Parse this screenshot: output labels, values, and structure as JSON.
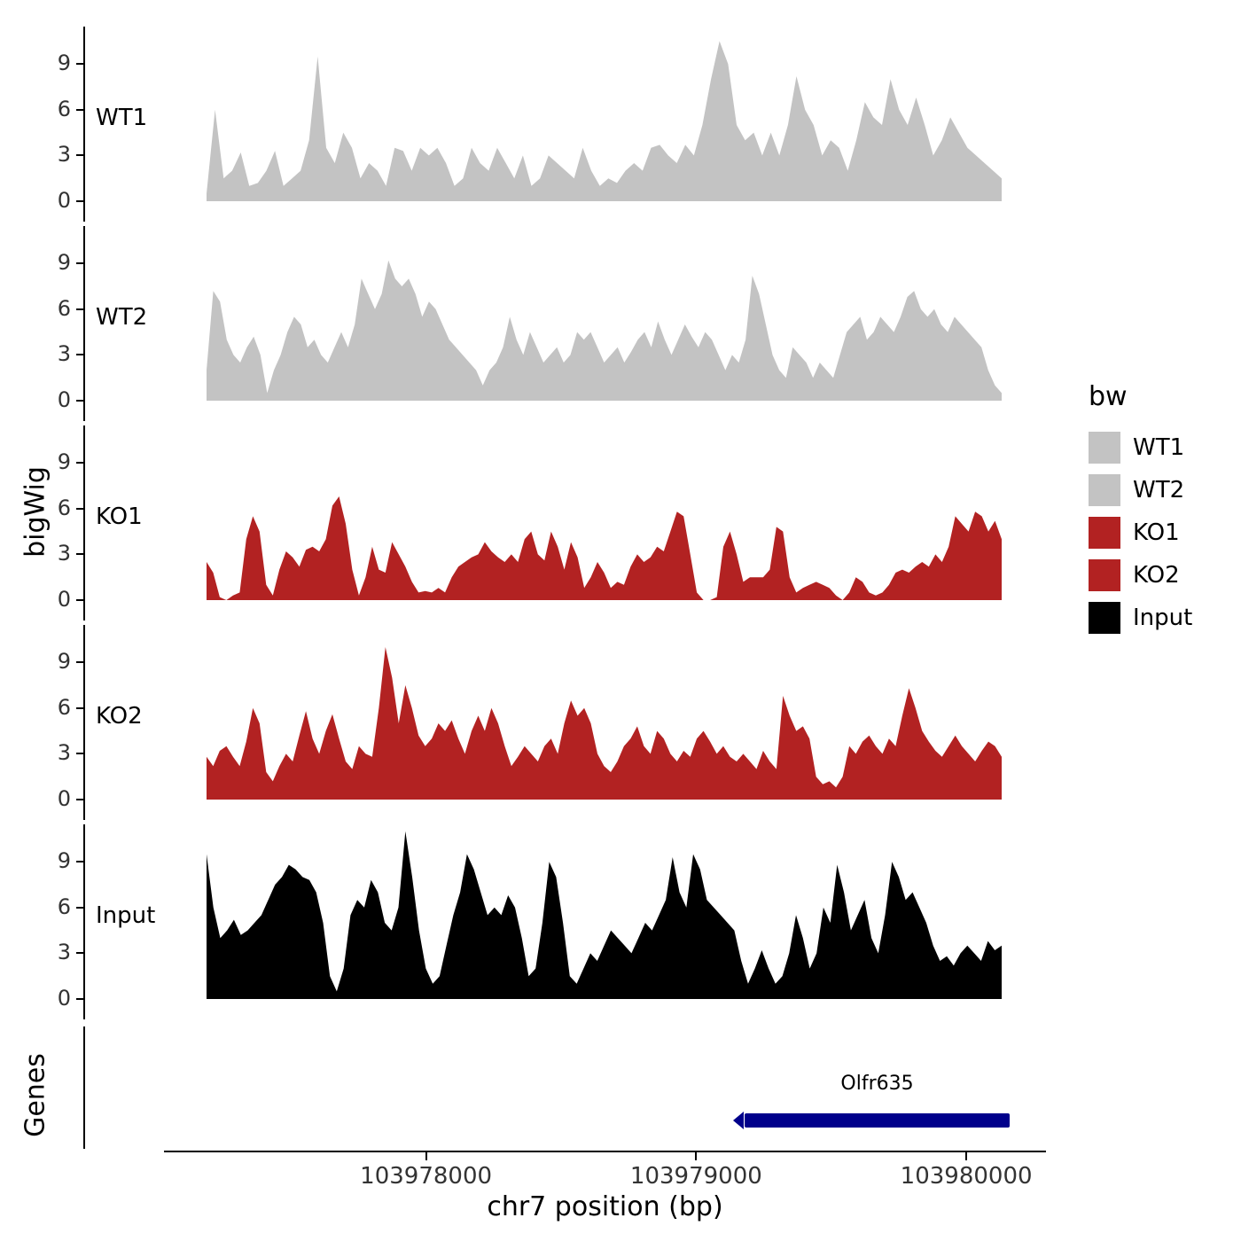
{
  "figure": {
    "ylab": "bigWig",
    "genes_lab": "Genes",
    "xlab": "chr7 position (bp)"
  },
  "legend": {
    "title": "bw",
    "entries": [
      {
        "label": "WT1",
        "color": "#c3c3c3"
      },
      {
        "label": "WT2",
        "color": "#c3c3c3"
      },
      {
        "label": "KO1",
        "color": "#b22222"
      },
      {
        "label": "KO2",
        "color": "#b22222"
      },
      {
        "label": "Input",
        "color": "#000000"
      }
    ]
  },
  "x_axis": {
    "ticks": [
      "103978000",
      "103979000",
      "103980000"
    ],
    "tick_values": [
      103978000,
      103979000,
      103980000
    ],
    "range_bp": [
      103977030,
      103980295
    ]
  },
  "gene": {
    "name": "Olfr635",
    "start_bp": 103979180,
    "end_bp": 103980160,
    "strand": "-",
    "color": "#00008B"
  },
  "chart_data": {
    "type": "area",
    "title": "",
    "xlabel": "chr7 position (bp)",
    "ylabel": "bigWig",
    "y_ticks": [
      0,
      3,
      6,
      9
    ],
    "ylim": [
      0,
      11
    ],
    "x_range_bp": [
      103977190,
      103980130
    ],
    "legend_title": "bw",
    "series": [
      {
        "name": "WT1",
        "color": "#c3c3c3",
        "values": [
          0.5,
          6,
          1.5,
          2,
          3.2,
          1,
          1.2,
          2,
          3.3,
          1,
          1.5,
          2,
          4,
          9.5,
          3.5,
          2.5,
          4.5,
          3.5,
          1.5,
          2.5,
          2,
          1,
          3.5,
          3.3,
          2,
          3.5,
          3,
          3.5,
          2.5,
          1,
          1.5,
          3.5,
          2.5,
          2,
          3.5,
          2.5,
          1.5,
          3,
          1,
          1.5,
          3,
          2.5,
          2,
          1.5,
          3.5,
          2,
          1,
          1.5,
          1.2,
          2,
          2.5,
          2,
          3.5,
          3.7,
          3,
          2.5,
          3.7,
          3,
          5,
          8,
          10.5,
          9,
          5,
          4,
          4.5,
          3,
          4.5,
          3,
          5,
          8.2,
          6,
          5,
          3,
          4,
          3.5,
          2,
          4,
          6.5,
          5.5,
          5,
          8,
          6,
          5,
          6.8,
          5,
          3,
          4,
          5.5,
          4.5,
          3.5,
          3,
          2.5,
          2,
          1.5
        ]
      },
      {
        "name": "WT2",
        "color": "#c3c3c3",
        "values": [
          2,
          7.2,
          6.5,
          4,
          3,
          2.5,
          3.5,
          4.2,
          3,
          0.5,
          2,
          3,
          4.5,
          5.5,
          5,
          3.5,
          4,
          3,
          2.5,
          3.5,
          4.5,
          3.5,
          5,
          8,
          7,
          6,
          7,
          9.2,
          8,
          7.5,
          8,
          7,
          5.5,
          6.5,
          6,
          5,
          4,
          3.5,
          3,
          2.5,
          2,
          1,
          2,
          2.5,
          3.5,
          5.5,
          4,
          3,
          4.5,
          3.5,
          2.5,
          3,
          3.5,
          2.5,
          3,
          4.5,
          4,
          4.5,
          3.5,
          2.5,
          3,
          3.5,
          2.5,
          3.2,
          4,
          4.5,
          3.5,
          5.2,
          4,
          3,
          4,
          5,
          4.2,
          3.5,
          4.5,
          4,
          3,
          2,
          3,
          2.5,
          4,
          8.2,
          7,
          5,
          3,
          2,
          1.5,
          3.5,
          3,
          2.5,
          1.5,
          2.5,
          2,
          1.5,
          3,
          4.5,
          5,
          5.5,
          4,
          4.5,
          5.5,
          5,
          4.5,
          5.5,
          6.8,
          7.2,
          6,
          5.5,
          6,
          5,
          4.5,
          5.5,
          5,
          4.5,
          4,
          3.5,
          2,
          1,
          0.5
        ]
      },
      {
        "name": "KO1",
        "color": "#b22222",
        "values": [
          2.5,
          1.8,
          0.2,
          0,
          0.3,
          0.5,
          4,
          5.5,
          4.5,
          1,
          0.3,
          2,
          3.2,
          2.8,
          2.2,
          3.3,
          3.5,
          3.2,
          4,
          6.2,
          6.8,
          5,
          2,
          0.3,
          1.5,
          3.5,
          2,
          1.8,
          3.8,
          3,
          2.2,
          1.2,
          0.5,
          0.6,
          0.5,
          0.8,
          0.5,
          1.5,
          2.2,
          2.5,
          2.8,
          3,
          3.8,
          3.2,
          2.8,
          2.5,
          3,
          2.5,
          4,
          4.5,
          3,
          2.6,
          4.5,
          3.5,
          2,
          3.8,
          2.8,
          0.8,
          1.5,
          2.5,
          1.8,
          0.8,
          1.2,
          1,
          2.2,
          3,
          2.5,
          2.8,
          3.5,
          3.2,
          4.5,
          5.8,
          5.5,
          3,
          0.5,
          0,
          0,
          0.2,
          3.5,
          4.5,
          3,
          1.2,
          1.5,
          1.5,
          1.5,
          2,
          4.8,
          4.5,
          1.5,
          0.5,
          0.8,
          1,
          1.2,
          1,
          0.8,
          0.3,
          0,
          0.5,
          1.5,
          1.2,
          0.5,
          0.3,
          0.5,
          1,
          1.8,
          2,
          1.8,
          2.2,
          2.5,
          2.2,
          3,
          2.5,
          3.5,
          5.5,
          5,
          4.5,
          5.8,
          5.5,
          4.5,
          5.2,
          4
        ]
      },
      {
        "name": "KO2",
        "color": "#b22222",
        "values": [
          2.8,
          2.2,
          3.2,
          3.5,
          2.8,
          2.2,
          3.8,
          6,
          5,
          1.8,
          1.2,
          2.2,
          3,
          2.5,
          4.2,
          5.8,
          4,
          3,
          4.5,
          5.6,
          4,
          2.5,
          2,
          3.5,
          3,
          2.8,
          6,
          10,
          8,
          5,
          7.5,
          6,
          4.2,
          3.5,
          4,
          5,
          4.5,
          5.2,
          4,
          3,
          4.5,
          5.5,
          4.5,
          6,
          5,
          3.5,
          2.2,
          2.8,
          3.5,
          3,
          2.5,
          3.5,
          4,
          3,
          5,
          6.5,
          5.5,
          6,
          5,
          3,
          2.2,
          1.8,
          2.5,
          3.5,
          4,
          4.8,
          3.5,
          3,
          4.5,
          4,
          3,
          2.5,
          3.2,
          2.8,
          4,
          4.5,
          3.8,
          3,
          3.5,
          2.8,
          2.5,
          3,
          2.5,
          2,
          3.2,
          2.5,
          2,
          6.8,
          5.5,
          4.5,
          4.8,
          4,
          1.5,
          1,
          1.2,
          0.8,
          1.5,
          3.5,
          3,
          3.8,
          4.2,
          3.5,
          3,
          4,
          3.5,
          5.5,
          7.3,
          6,
          4.5,
          3.8,
          3.2,
          2.8,
          3.5,
          4.2,
          3.5,
          3,
          2.5,
          3.2,
          3.8,
          3.5,
          2.8
        ]
      },
      {
        "name": "Input",
        "color": "#000000",
        "values": [
          9.5,
          6,
          4,
          4.5,
          5.2,
          4.2,
          4.5,
          5,
          5.5,
          6.5,
          7.5,
          8,
          8.8,
          8.5,
          8,
          7.8,
          7,
          5,
          1.5,
          0.5,
          2,
          5.5,
          6.5,
          6,
          7.8,
          7,
          5,
          4.5,
          6,
          11,
          8,
          4.5,
          2,
          1,
          1.5,
          3.5,
          5.5,
          7,
          9.5,
          8.5,
          7,
          5.5,
          6,
          5.5,
          6.8,
          6,
          4,
          1.5,
          2,
          5,
          9,
          8,
          5,
          1.5,
          1,
          2,
          3,
          2.5,
          3.5,
          4.5,
          4,
          3.5,
          3,
          4,
          5,
          4.5,
          5.5,
          6.5,
          9.3,
          7,
          6,
          9.5,
          8.5,
          6.5,
          6,
          5.5,
          5,
          4.5,
          2.5,
          1,
          2,
          3.2,
          2,
          1,
          1.5,
          3,
          5.5,
          4,
          2,
          3,
          6,
          5,
          8.8,
          7,
          4.5,
          5.5,
          6.5,
          4,
          3,
          5.5,
          9,
          8,
          6.5,
          7,
          6,
          5,
          3.5,
          2.5,
          2.8,
          2.2,
          3,
          3.5,
          3,
          2.5,
          3.8,
          3.2,
          3.5
        ]
      }
    ]
  }
}
